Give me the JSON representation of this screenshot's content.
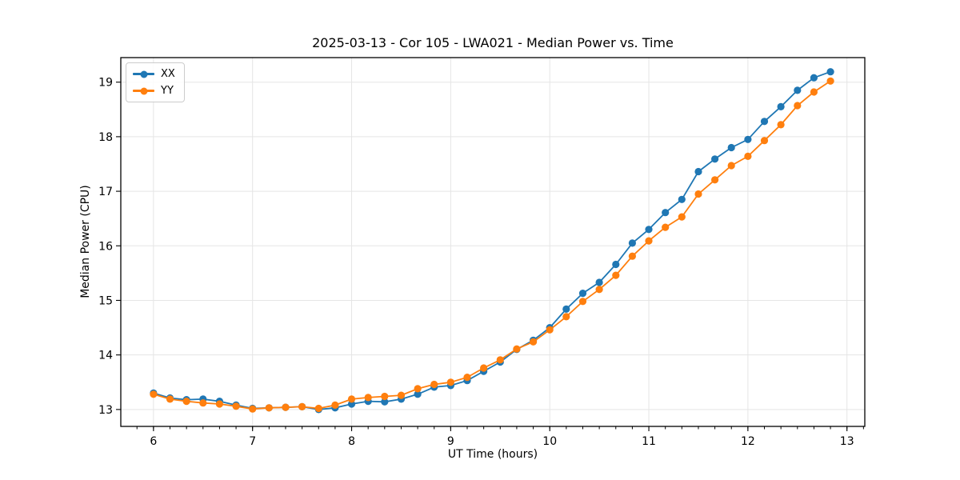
{
  "chart_data": {
    "type": "line",
    "title": "2025-03-13 - Cor 105 - LWA021 - Median Power vs. Time",
    "xlabel": "UT Time (hours)",
    "ylabel": "Median Power (CPU)",
    "xlim": [
      5.67,
      13.18
    ],
    "ylim": [
      12.69,
      19.45
    ],
    "x_ticks": [
      6,
      7,
      8,
      9,
      10,
      11,
      12,
      13
    ],
    "y_ticks": [
      13,
      14,
      15,
      16,
      17,
      18,
      19
    ],
    "x_minor_step": 0.166667,
    "grid": true,
    "grid_color": "#e5e5e5",
    "legend_position": "upper-left",
    "marker": "circle",
    "marker_radius": 4.6,
    "line_width": 1.8,
    "x": [
      6.0,
      6.1667,
      6.3333,
      6.5,
      6.6667,
      6.8333,
      7.0,
      7.1667,
      7.3333,
      7.5,
      7.6667,
      7.8333,
      8.0,
      8.1667,
      8.3333,
      8.5,
      8.6667,
      8.8333,
      9.0,
      9.1667,
      9.3333,
      9.5,
      9.6667,
      9.8333,
      10.0,
      10.1667,
      10.3333,
      10.5,
      10.6667,
      10.8333,
      11.0,
      11.1667,
      11.3333,
      11.5,
      11.6667,
      11.8333,
      12.0,
      12.1667,
      12.3333,
      12.5,
      12.6667,
      12.8333
    ],
    "series": [
      {
        "name": "XX",
        "color": "#1f77b4",
        "values": [
          13.3,
          13.21,
          13.18,
          13.19,
          13.15,
          13.08,
          13.02,
          13.03,
          13.04,
          13.05,
          13.0,
          13.03,
          13.1,
          13.15,
          13.14,
          13.19,
          13.28,
          13.41,
          13.44,
          13.53,
          13.7,
          13.87,
          14.1,
          14.27,
          14.5,
          14.84,
          15.13,
          15.33,
          15.66,
          16.05,
          16.3,
          16.61,
          16.85,
          17.36,
          17.59,
          17.8,
          17.95,
          18.28,
          18.55,
          18.85,
          19.08,
          19.19
        ],
        "legend_label": "XX"
      },
      {
        "name": "YY",
        "color": "#ff7f0e",
        "values": [
          13.28,
          13.19,
          13.15,
          13.12,
          13.1,
          13.06,
          13.01,
          13.03,
          13.04,
          13.05,
          13.02,
          13.08,
          13.19,
          13.22,
          13.24,
          13.26,
          13.38,
          13.46,
          13.5,
          13.59,
          13.76,
          13.91,
          14.11,
          14.24,
          14.46,
          14.7,
          14.98,
          15.2,
          15.46,
          15.81,
          16.09,
          16.34,
          16.53,
          16.95,
          17.21,
          17.47,
          17.64,
          17.93,
          18.22,
          18.57,
          18.82,
          19.02
        ],
        "legend_label": "YY"
      }
    ]
  }
}
